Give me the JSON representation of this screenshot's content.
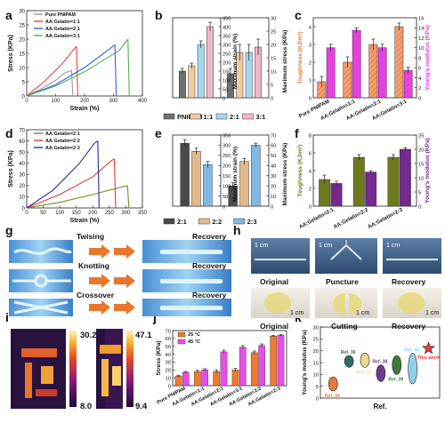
{
  "colors": {
    "pnipam": "#707070",
    "r11": "#f2c9a0",
    "r21": "#a8d6f2",
    "r31": "#f3b7cc",
    "d21": "#4a4a4a",
    "d22": "#e3b98c",
    "d23": "#7fb9e8",
    "c_tough": "#e8763b",
    "c_mod": "#e73fe0",
    "f_tough": "#6f7a1f",
    "f_mod": "#74298f",
    "j_25": "#f07a2e",
    "j_45": "#e64fe8",
    "a_pn": "#9a9a9a",
    "a_11": "#e0453a",
    "a_21": "#3a5bd6",
    "a_31": "#4cae5a",
    "d_21": "#7a8a1e",
    "d_22": "#e03a3a",
    "d_23": "#1f2f9a"
  },
  "panels": {
    "a": "a",
    "b": "b",
    "c": "c",
    "d": "d",
    "e": "e",
    "f": "f",
    "g": "g",
    "h": "h",
    "i": "i",
    "j": "j",
    "k": "k"
  },
  "chart_data": [
    {
      "id": "a",
      "type": "line",
      "xlabel": "Strain (%)",
      "ylabel": "Stress (KPa)",
      "xlim": [
        0,
        400
      ],
      "ylim": [
        0,
        30
      ],
      "xticks": [
        0,
        100,
        200,
        300,
        400
      ],
      "yticks": [
        0,
        5,
        10,
        15,
        20,
        25,
        30
      ],
      "series": [
        {
          "name": "Pure PNIPAM",
          "color_key": "a_pn",
          "x": [
            0,
            50,
            100,
            130,
            155
          ],
          "y": [
            0,
            2.5,
            5.5,
            8.0,
            9.0
          ]
        },
        {
          "name": "AA:Gelatin=1:1",
          "color_key": "a_11",
          "x": [
            0,
            60,
            120,
            160,
            172
          ],
          "y": [
            0,
            5,
            11,
            16,
            17.5
          ]
        },
        {
          "name": "AA:Gelatin=2:1",
          "color_key": "a_21",
          "x": [
            0,
            100,
            200,
            280,
            305
          ],
          "y": [
            0,
            4,
            10,
            16,
            18
          ]
        },
        {
          "name": "AA:Gelatin=3:1",
          "color_key": "a_31",
          "x": [
            0,
            100,
            200,
            320,
            350
          ],
          "y": [
            0,
            3.5,
            8.5,
            16,
            20
          ]
        }
      ]
    },
    {
      "id": "b",
      "type": "bar",
      "categories": [
        "PNIPAM",
        "1:1",
        "2:1",
        "3:1"
      ],
      "color_keys": [
        "pnipam",
        "r11",
        "r21",
        "r31"
      ],
      "ylabel_left": "Maximum strain (%)",
      "ylabel_right": "Maximum stress (KPa)",
      "ylim_left": [
        0,
        450
      ],
      "ylim_right": [
        0,
        30
      ],
      "yticks_left": [
        0,
        50,
        100,
        150,
        200,
        250,
        300,
        350,
        400,
        450
      ],
      "yticks_right": [
        0,
        5,
        10,
        15,
        20,
        25,
        30
      ],
      "strain": [
        150,
        180,
        300,
        400
      ],
      "strain_err": [
        15,
        15,
        20,
        25
      ],
      "stress": [
        9,
        17,
        17,
        19
      ],
      "stress_err": [
        2,
        3,
        3,
        3
      ]
    },
    {
      "id": "c",
      "type": "bar",
      "categories": [
        "Pure PNIPAM",
        "AA:Gelatin=1:1",
        "AA:Gelatin=2:1",
        "AA:Gelatin=3:1"
      ],
      "ylabel_left": "Toughness (KJ/m³)",
      "ylabel_right": "Young's modulus (KPa)",
      "ylim_left": [
        0,
        4.5
      ],
      "ylim_right": [
        0,
        16
      ],
      "yticks_left": [
        0,
        1,
        2,
        3,
        4
      ],
      "yticks_right": [
        0,
        2,
        4,
        6,
        8,
        10,
        12,
        14,
        16
      ],
      "toughness": [
        0.9,
        2.0,
        3.0,
        4.0
      ],
      "toughness_err": [
        0.3,
        0.3,
        0.3,
        0.2
      ],
      "modulus": [
        10,
        13.5,
        10,
        5.5
      ],
      "modulus_err": [
        0.7,
        0.5,
        0.7,
        0.6
      ]
    },
    {
      "id": "d",
      "type": "line",
      "xlabel": "Strain (%)",
      "ylabel": "Stress (KPa)",
      "xlim": [
        0,
        350
      ],
      "ylim": [
        0,
        70
      ],
      "xticks": [
        0,
        50,
        100,
        150,
        200,
        250,
        300,
        350
      ],
      "yticks": [
        0,
        10,
        20,
        30,
        40,
        50,
        60,
        70
      ],
      "series": [
        {
          "name": "AA:Gelatin=2:1",
          "color_key": "d_21",
          "x": [
            0,
            100,
            200,
            290,
            305
          ],
          "y": [
            0,
            5,
            12,
            19,
            20
          ]
        },
        {
          "name": "AA:Gelatin=2:2",
          "color_key": "d_22",
          "x": [
            0,
            100,
            200,
            255,
            265
          ],
          "y": [
            0,
            12,
            28,
            42,
            44
          ]
        },
        {
          "name": "AA:Gelatin=2:3",
          "color_key": "d_23",
          "x": [
            0,
            80,
            160,
            205,
            215
          ],
          "y": [
            0,
            16,
            40,
            58,
            60
          ]
        }
      ]
    },
    {
      "id": "e",
      "type": "bar",
      "categories": [
        "2:1",
        "2:2",
        "2:3"
      ],
      "color_keys": [
        "d21",
        "d22",
        "d23"
      ],
      "ylabel_left": "Maximum strain (%)",
      "ylabel_right": "Maximum stress (KPa)",
      "ylim_left": [
        0,
        350
      ],
      "ylim_right": [
        0,
        70
      ],
      "yticks_left": [
        0,
        50,
        100,
        150,
        200,
        250,
        300,
        350
      ],
      "yticks_right": [
        0,
        10,
        20,
        30,
        40,
        50,
        60,
        70
      ],
      "strain": [
        310,
        270,
        205
      ],
      "strain_err": [
        18,
        15,
        15
      ],
      "stress": [
        20,
        44,
        60
      ],
      "stress_err": [
        3,
        3,
        2
      ]
    },
    {
      "id": "f",
      "type": "bar",
      "categories": [
        "AA:Gelatin=2:1",
        "AA:Gelatin=2:2",
        "AA:Gelatin=2:3"
      ],
      "ylabel_left": "Toughness (KJ/m³)",
      "ylabel_right": "Young's modulus (KPa)",
      "ylim_left": [
        0,
        8
      ],
      "ylim_right": [
        0,
        25
      ],
      "yticks_left": [
        0,
        2,
        4,
        6,
        8
      ],
      "yticks_right": [
        0,
        5,
        10,
        15,
        20,
        25
      ],
      "toughness": [
        3.0,
        5.5,
        5.5
      ],
      "toughness_err": [
        0.5,
        0.3,
        0.3
      ],
      "modulus": [
        8,
        12,
        20
      ],
      "modulus_err": [
        0.8,
        0.5,
        0.5
      ]
    },
    {
      "id": "j",
      "type": "bar",
      "categories": [
        "Pure PNIPAM",
        "AA:Gelatin=1:1",
        "AA:Gelatin=2:1",
        "AA:Gelatin=3:1",
        "AA:Gelatin=2:2",
        "AA:Gelatin=2:3"
      ],
      "ylabel": "Stress (KPa)",
      "ylim": [
        0,
        70
      ],
      "yticks": [
        0,
        10,
        20,
        30,
        40,
        50,
        60,
        70
      ],
      "series": [
        {
          "name": "25 °C",
          "color_key": "j_25",
          "values": [
            12,
            18,
            18,
            20,
            42,
            63
          ],
          "err": [
            1,
            1.5,
            2,
            2,
            2,
            1
          ]
        },
        {
          "name": "45 °C",
          "color_key": "j_45",
          "values": [
            17,
            20,
            43,
            49,
            51,
            64
          ],
          "err": [
            1,
            1.5,
            2,
            2,
            2,
            1
          ]
        }
      ]
    },
    {
      "id": "k",
      "type": "scatter",
      "xlabel": "Ref.",
      "ylabel": "Young's modulus (KPa)",
      "ylim": [
        0,
        30
      ],
      "yticks": [
        0,
        5,
        10,
        15,
        20,
        25,
        30
      ],
      "points": [
        {
          "label": "Ref. 34",
          "color": "#e57a3a",
          "y_min": 3,
          "y_max": 9
        },
        {
          "label": "Ref. 36",
          "color": "#2f6d6b",
          "y_min": 13,
          "y_max": 18
        },
        {
          "label": "Ref. 37",
          "color": "#e8d890",
          "y_min": 13,
          "y_max": 19
        },
        {
          "label": "Ref. 38",
          "color": "#6a3b8f",
          "y_min": 7,
          "y_max": 14
        },
        {
          "label": "Ref. 39",
          "color": "#3e7a3a",
          "y_min": 10,
          "y_max": 18
        },
        {
          "label": "Ref. 40",
          "color": "#8fd0e8",
          "y_min": 6,
          "y_max": 19
        },
        {
          "label": "This work",
          "color": "#e83a3a",
          "y_min": 21,
          "y_max": 21
        }
      ]
    }
  ],
  "g": {
    "rows": [
      {
        "action": "Twising",
        "result": "Recovery"
      },
      {
        "action": "Knotting",
        "result": "Recovery"
      },
      {
        "action": "Crossover",
        "result": "Recovery"
      }
    ]
  },
  "h": {
    "scale": "1 cm",
    "top": [
      "Original",
      "Puncture",
      "Recovery"
    ],
    "bottom": [
      "Original",
      "Cutting",
      "Recovery"
    ]
  },
  "i": {
    "left": {
      "max": "30.2",
      "min": "8.0"
    },
    "right": {
      "max": "47.1",
      "min": "9.4"
    }
  }
}
